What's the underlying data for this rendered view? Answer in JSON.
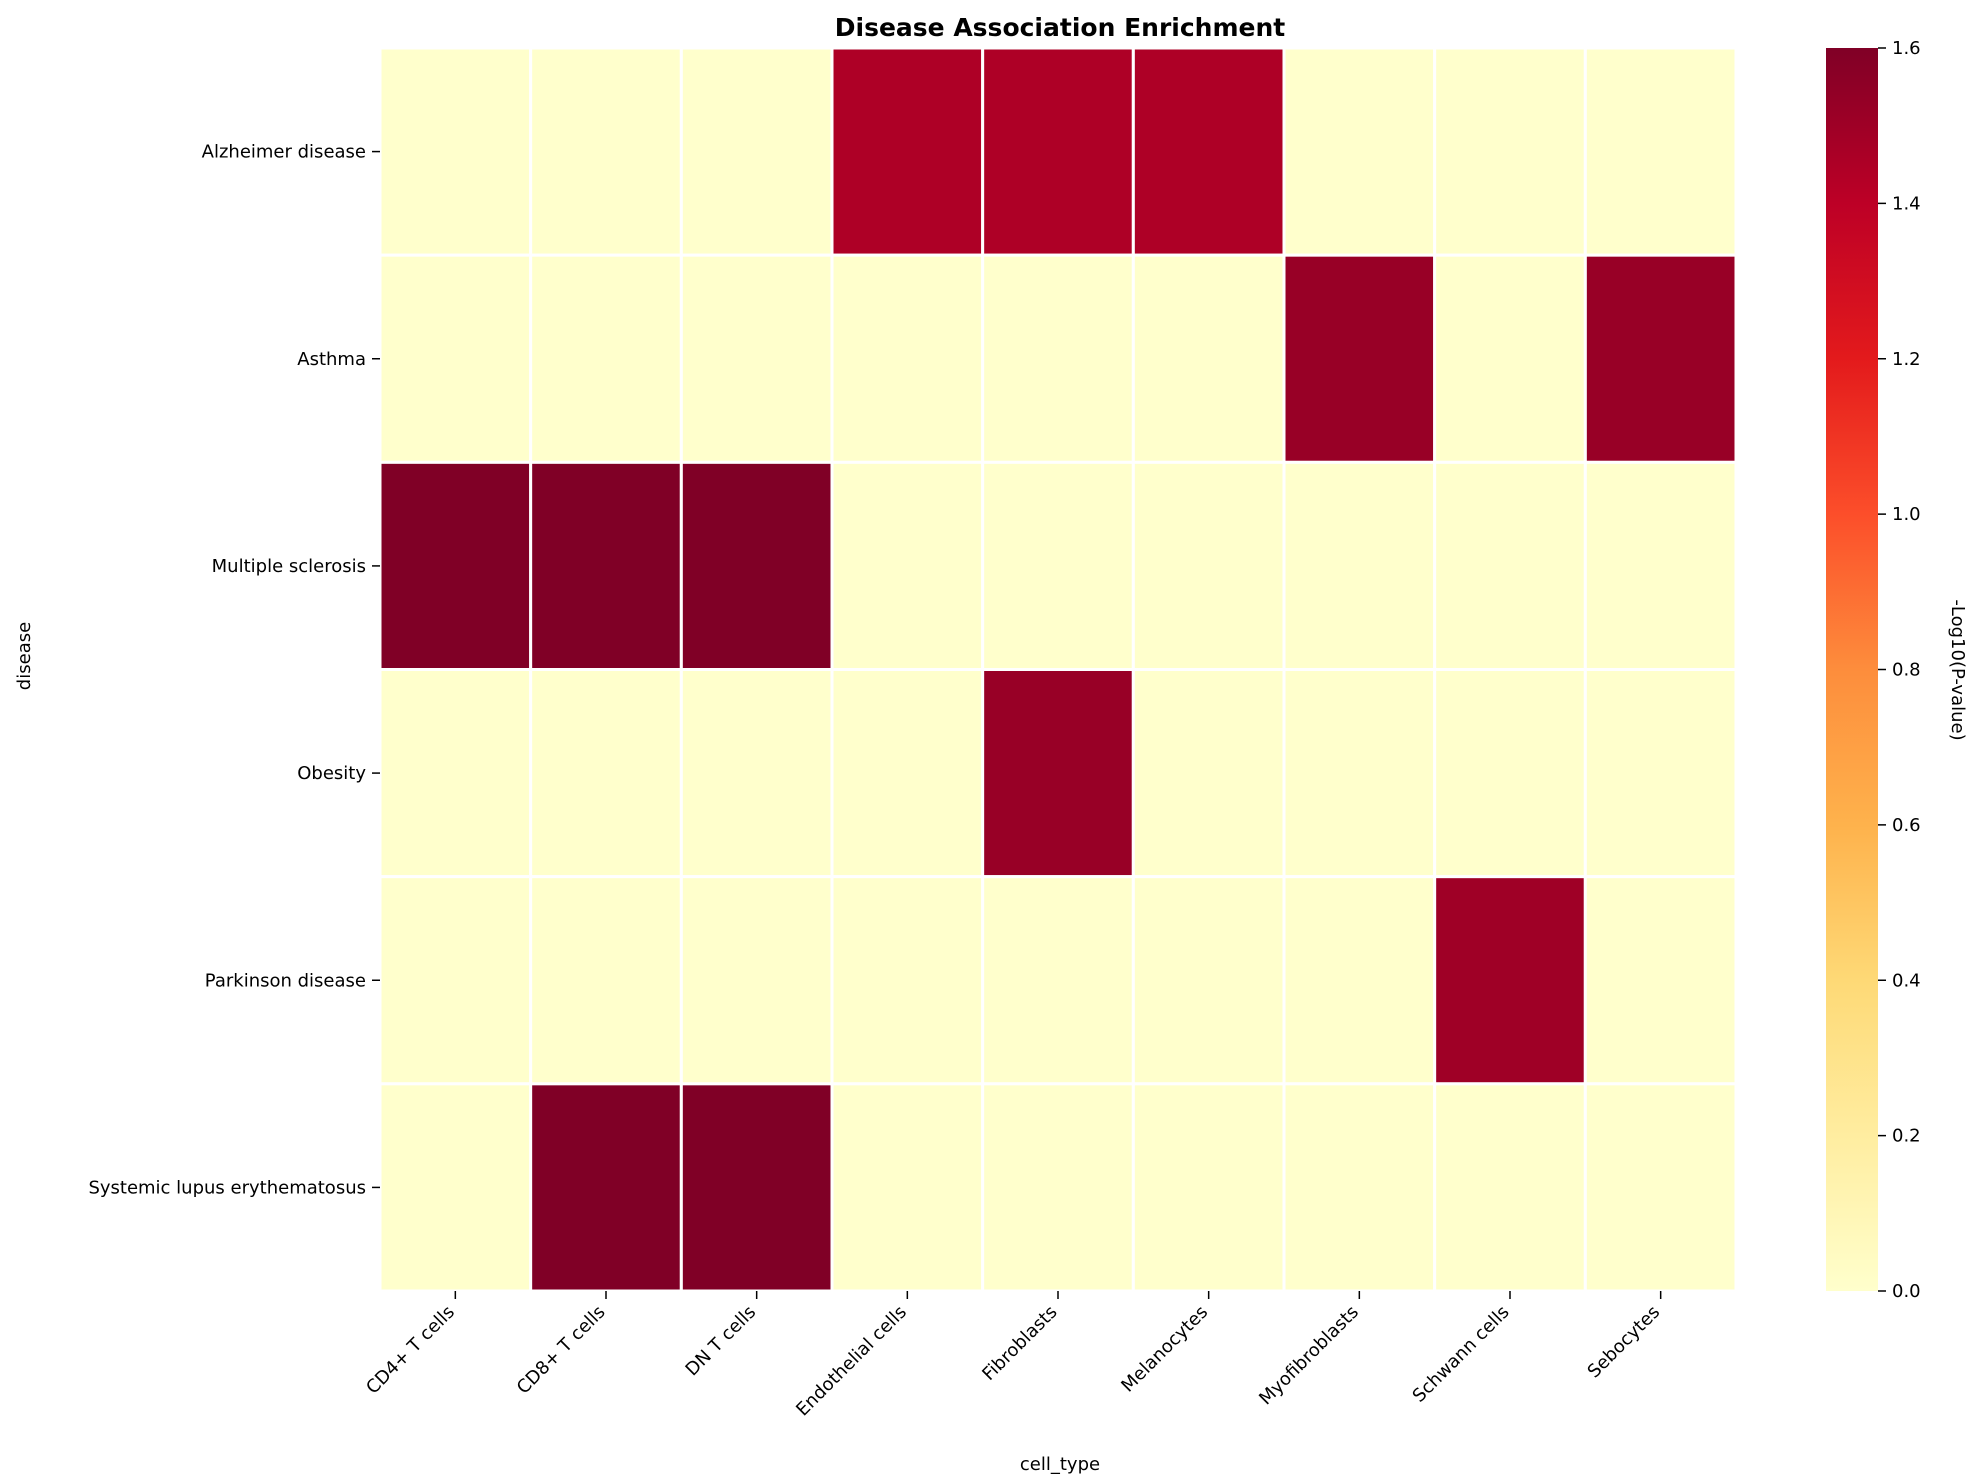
{
  "chart_data": {
    "type": "heatmap",
    "title": "Disease Association Enrichment",
    "xlabel": "cell_type",
    "ylabel": "disease",
    "colorbar_label": "-Log10(P-value)",
    "colorbar_range": [
      0,
      1.6
    ],
    "colorbar_ticks": [
      "0.0",
      "0.2",
      "0.4",
      "0.6",
      "0.8",
      "1.0",
      "1.2",
      "1.4",
      "1.6"
    ],
    "colormap": "YlOrRd",
    "x": [
      "CD4+ T cells",
      "CD8+ T cells",
      "DN T cells",
      "Endothelial cells",
      "Fibroblasts",
      "Melanocytes",
      "Myofibroblasts",
      "Schwann cells",
      "Sebocytes"
    ],
    "y": [
      "Alzheimer disease",
      "Asthma",
      "Multiple sclerosis",
      "Obesity",
      "Parkinson disease",
      "Systemic lupus erythematosus"
    ],
    "values": [
      [
        0,
        0,
        0,
        1.45,
        1.45,
        1.45,
        0,
        0,
        0
      ],
      [
        0,
        0,
        0,
        0,
        0,
        0,
        1.52,
        0,
        1.52
      ],
      [
        1.61,
        1.61,
        1.61,
        0,
        0,
        0,
        0,
        0,
        0
      ],
      [
        0,
        0,
        0,
        0,
        1.52,
        0,
        0,
        0,
        0
      ],
      [
        0,
        0,
        0,
        0,
        0,
        0,
        0,
        1.5,
        0
      ],
      [
        0,
        1.61,
        1.61,
        0,
        0,
        0,
        0,
        0,
        0
      ]
    ]
  }
}
